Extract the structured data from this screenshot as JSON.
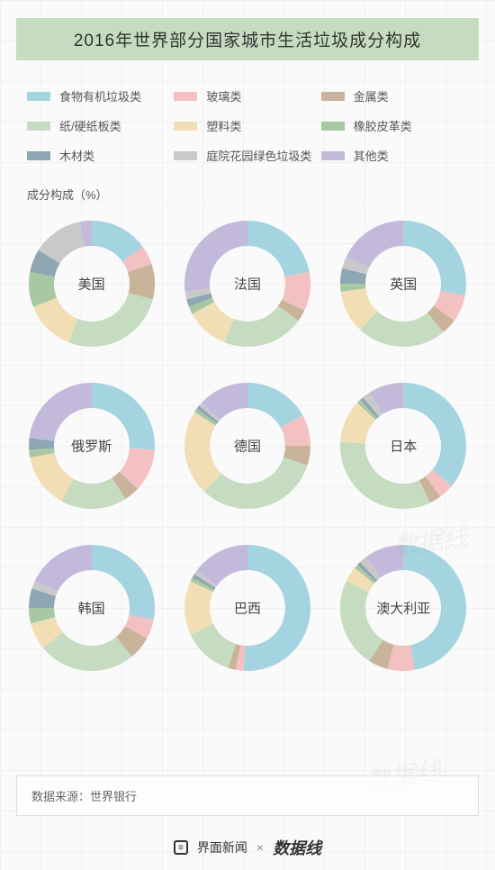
{
  "title": "2016年世界部分国家城市生活垃圾成分构成",
  "axis_label": "成分构成（%）",
  "source_label": "数据来源：世界银行",
  "footer": {
    "brand1": "界面新闻",
    "sep": "×",
    "brand2": "数据线"
  },
  "categories": [
    {
      "name": "food",
      "label": "食物有机垃圾类",
      "color": "#a3d4e0"
    },
    {
      "name": "glass",
      "label": "玻璃类",
      "color": "#f3c1c1"
    },
    {
      "name": "metal",
      "label": "金属类",
      "color": "#c9b39a"
    },
    {
      "name": "paper",
      "label": "纸/硬纸板类",
      "color": "#c5dcc0"
    },
    {
      "name": "plastic",
      "label": "塑料类",
      "color": "#f1deb5"
    },
    {
      "name": "rubber",
      "label": "橡胶皮革类",
      "color": "#a8c7a3"
    },
    {
      "name": "wood",
      "label": "木材类",
      "color": "#8ea7b3"
    },
    {
      "name": "yard",
      "label": "庭院花园绿色垃圾类",
      "color": "#c9c9c9"
    },
    {
      "name": "other",
      "label": "其他类",
      "color": "#c3b9db"
    }
  ],
  "chart_style": {
    "type": "donut-grid",
    "grid": [
      3,
      3
    ],
    "outer_radius": 70,
    "inner_radius": 42,
    "background_color": "#fafafa",
    "grid_color": "#f0f0f0",
    "title_bg_color": "#c5dcc0",
    "label_fontsize": 15,
    "legend_fontsize": 13
  },
  "countries": [
    {
      "name": "美国",
      "segments": [
        {
          "cat": "food",
          "v": 15
        },
        {
          "cat": "glass",
          "v": 5
        },
        {
          "cat": "metal",
          "v": 9
        },
        {
          "cat": "paper",
          "v": 27
        },
        {
          "cat": "plastic",
          "v": 13
        },
        {
          "cat": "rubber",
          "v": 9
        },
        {
          "cat": "wood",
          "v": 6
        },
        {
          "cat": "yard",
          "v": 13
        },
        {
          "cat": "other",
          "v": 3
        }
      ]
    },
    {
      "name": "法国",
      "segments": [
        {
          "cat": "food",
          "v": 22
        },
        {
          "cat": "glass",
          "v": 10
        },
        {
          "cat": "metal",
          "v": 3
        },
        {
          "cat": "paper",
          "v": 21
        },
        {
          "cat": "plastic",
          "v": 11
        },
        {
          "cat": "rubber",
          "v": 2
        },
        {
          "cat": "wood",
          "v": 2
        },
        {
          "cat": "yard",
          "v": 2
        },
        {
          "cat": "other",
          "v": 27
        }
      ]
    },
    {
      "name": "英国",
      "segments": [
        {
          "cat": "food",
          "v": 28
        },
        {
          "cat": "glass",
          "v": 7
        },
        {
          "cat": "metal",
          "v": 4
        },
        {
          "cat": "paper",
          "v": 23
        },
        {
          "cat": "plastic",
          "v": 11
        },
        {
          "cat": "rubber",
          "v": 2
        },
        {
          "cat": "wood",
          "v": 4
        },
        {
          "cat": "yard",
          "v": 3
        },
        {
          "cat": "other",
          "v": 18
        }
      ]
    },
    {
      "name": "俄罗斯",
      "segments": [
        {
          "cat": "food",
          "v": 26
        },
        {
          "cat": "glass",
          "v": 11
        },
        {
          "cat": "metal",
          "v": 4
        },
        {
          "cat": "paper",
          "v": 17
        },
        {
          "cat": "plastic",
          "v": 14
        },
        {
          "cat": "rubber",
          "v": 2
        },
        {
          "cat": "wood",
          "v": 3
        },
        {
          "cat": "yard",
          "v": 0
        },
        {
          "cat": "other",
          "v": 23
        }
      ]
    },
    {
      "name": "德国",
      "segments": [
        {
          "cat": "food",
          "v": 17
        },
        {
          "cat": "glass",
          "v": 8
        },
        {
          "cat": "metal",
          "v": 5
        },
        {
          "cat": "paper",
          "v": 32
        },
        {
          "cat": "plastic",
          "v": 22
        },
        {
          "cat": "rubber",
          "v": 1
        },
        {
          "cat": "wood",
          "v": 1
        },
        {
          "cat": "yard",
          "v": 1
        },
        {
          "cat": "other",
          "v": 13
        }
      ]
    },
    {
      "name": "日本",
      "segments": [
        {
          "cat": "food",
          "v": 36
        },
        {
          "cat": "glass",
          "v": 4
        },
        {
          "cat": "metal",
          "v": 3
        },
        {
          "cat": "paper",
          "v": 33
        },
        {
          "cat": "plastic",
          "v": 11
        },
        {
          "cat": "rubber",
          "v": 1
        },
        {
          "cat": "wood",
          "v": 1
        },
        {
          "cat": "yard",
          "v": 2
        },
        {
          "cat": "other",
          "v": 9
        }
      ]
    },
    {
      "name": "韩国",
      "segments": [
        {
          "cat": "food",
          "v": 28
        },
        {
          "cat": "glass",
          "v": 5
        },
        {
          "cat": "metal",
          "v": 6
        },
        {
          "cat": "paper",
          "v": 25
        },
        {
          "cat": "plastic",
          "v": 7
        },
        {
          "cat": "rubber",
          "v": 4
        },
        {
          "cat": "wood",
          "v": 5
        },
        {
          "cat": "yard",
          "v": 2
        },
        {
          "cat": "other",
          "v": 18
        }
      ]
    },
    {
      "name": "巴西",
      "segments": [
        {
          "cat": "food",
          "v": 51
        },
        {
          "cat": "glass",
          "v": 2
        },
        {
          "cat": "metal",
          "v": 2
        },
        {
          "cat": "paper",
          "v": 13
        },
        {
          "cat": "plastic",
          "v": 14
        },
        {
          "cat": "rubber",
          "v": 1
        },
        {
          "cat": "wood",
          "v": 1
        },
        {
          "cat": "yard",
          "v": 1
        },
        {
          "cat": "other",
          "v": 15
        }
      ]
    },
    {
      "name": "澳大利亚",
      "segments": [
        {
          "cat": "food",
          "v": 47
        },
        {
          "cat": "glass",
          "v": 7
        },
        {
          "cat": "metal",
          "v": 5
        },
        {
          "cat": "paper",
          "v": 23
        },
        {
          "cat": "plastic",
          "v": 4
        },
        {
          "cat": "rubber",
          "v": 1
        },
        {
          "cat": "wood",
          "v": 1
        },
        {
          "cat": "yard",
          "v": 2
        },
        {
          "cat": "other",
          "v": 10
        }
      ]
    }
  ]
}
